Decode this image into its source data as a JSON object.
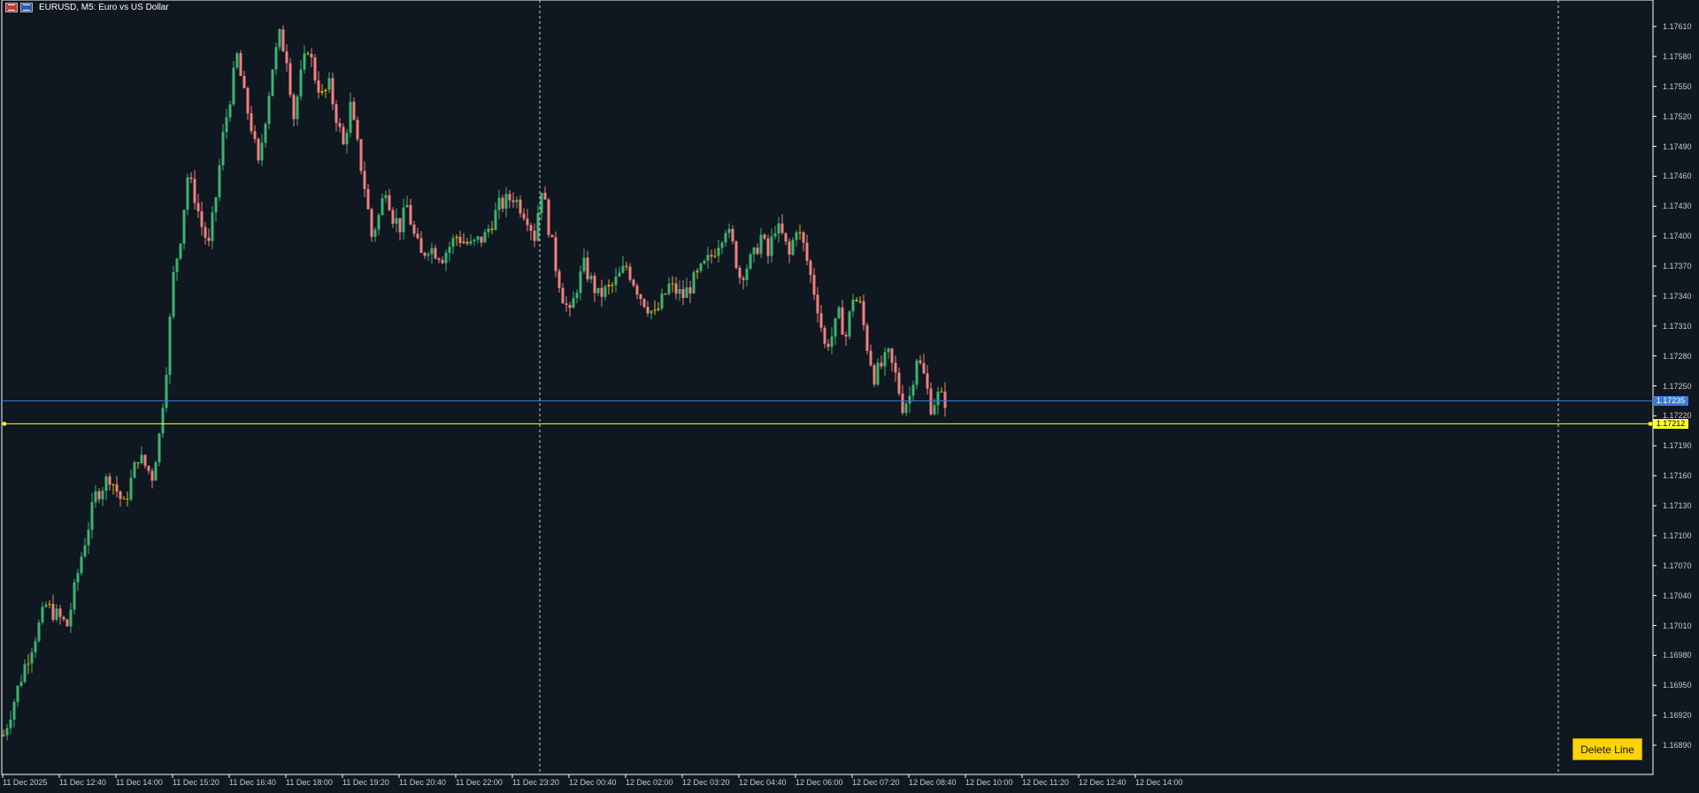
{
  "window": {
    "title": "EURUSD, M5:  Euro vs US Dollar",
    "icons": [
      "chart-menu-icon",
      "chart-window-icon"
    ]
  },
  "colors": {
    "background": "#0f1720",
    "axis": "#ffffff",
    "bull": "#3cb371",
    "bear": "#f08080",
    "doji": "#e6b800",
    "blue_line": "#3a7bd5",
    "yellow_line": "#ffff33",
    "button_bg": "#ffd400"
  },
  "price_axis": {
    "ticks": [
      "1.17610",
      "1.17580",
      "1.17550",
      "1.17520",
      "1.17490",
      "1.17460",
      "1.17430",
      "1.17400",
      "1.17370",
      "1.17340",
      "1.17310",
      "1.17280",
      "1.17250",
      "1.17220",
      "1.17190",
      "1.17160",
      "1.17130",
      "1.17100",
      "1.17070",
      "1.17040",
      "1.17010",
      "1.16980",
      "1.16950",
      "1.16920",
      "1.16890"
    ]
  },
  "time_axis": {
    "ticks": [
      "11 Dec 2025",
      "11 Dec 12:40",
      "11 Dec 14:00",
      "11 Dec 15:20",
      "11 Dec 16:40",
      "11 Dec 18:00",
      "11 Dec 19:20",
      "11 Dec 20:40",
      "11 Dec 22:00",
      "11 Dec 23:20",
      "12 Dec 00:40",
      "12 Dec 02:00",
      "12 Dec 03:20",
      "12 Dec 04:40",
      "12 Dec 06:00",
      "12 Dec 07:20",
      "12 Dec 08:40",
      "12 Dec 10:00",
      "12 Dec 11:20",
      "12 Dec 12:40",
      "12 Dec 14:00"
    ]
  },
  "horizontal_lines": {
    "blue": {
      "price": 1.17235,
      "label": "1.17235"
    },
    "yellow": {
      "price": 1.17212,
      "label": "1.17212"
    }
  },
  "delete_button": {
    "label": "Delete Line"
  },
  "chart_data": {
    "type": "candlestick",
    "symbol": "EURUSD",
    "timeframe": "M5",
    "ylim": [
      1.1687,
      1.1763
    ],
    "trend_path": [
      [
        0,
        1.169
      ],
      [
        6,
        1.1697
      ],
      [
        12,
        1.1703
      ],
      [
        18,
        1.1701
      ],
      [
        22,
        1.1708
      ],
      [
        26,
        1.1714
      ],
      [
        30,
        1.1716
      ],
      [
        34,
        1.1713
      ],
      [
        38,
        1.1718
      ],
      [
        42,
        1.1716
      ],
      [
        44,
        1.172
      ],
      [
        46,
        1.1727
      ],
      [
        48,
        1.1736
      ],
      [
        50,
        1.174
      ],
      [
        52,
        1.1746
      ],
      [
        54,
        1.1744
      ],
      [
        56,
        1.1741
      ],
      [
        58,
        1.1739
      ],
      [
        60,
        1.1744
      ],
      [
        62,
        1.175
      ],
      [
        64,
        1.1754
      ],
      [
        66,
        1.1758
      ],
      [
        68,
        1.1754
      ],
      [
        70,
        1.1751
      ],
      [
        72,
        1.1747
      ],
      [
        74,
        1.1752
      ],
      [
        76,
        1.1757
      ],
      [
        78,
        1.176
      ],
      [
        80,
        1.1758
      ],
      [
        82,
        1.1752
      ],
      [
        84,
        1.1756
      ],
      [
        86,
        1.1759
      ],
      [
        88,
        1.1756
      ],
      [
        90,
        1.1754
      ],
      [
        92,
        1.1755
      ],
      [
        94,
        1.1752
      ],
      [
        96,
        1.1749
      ],
      [
        98,
        1.1753
      ],
      [
        100,
        1.1749
      ],
      [
        102,
        1.1745
      ],
      [
        104,
        1.174
      ],
      [
        106,
        1.1742
      ],
      [
        108,
        1.1745
      ],
      [
        110,
        1.1742
      ],
      [
        112,
        1.1741
      ],
      [
        114,
        1.1743
      ],
      [
        116,
        1.174
      ],
      [
        118,
        1.1738
      ],
      [
        120,
        1.1739
      ],
      [
        124,
        1.1738
      ],
      [
        128,
        1.174
      ],
      [
        132,
        1.1739
      ],
      [
        136,
        1.174
      ],
      [
        140,
        1.1743
      ],
      [
        144,
        1.1744
      ],
      [
        148,
        1.1742
      ],
      [
        150,
        1.174
      ],
      [
        152,
        1.1745
      ],
      [
        154,
        1.1741
      ],
      [
        156,
        1.1737
      ],
      [
        158,
        1.1734
      ],
      [
        160,
        1.1732
      ],
      [
        162,
        1.1735
      ],
      [
        164,
        1.1737
      ],
      [
        168,
        1.1734
      ],
      [
        172,
        1.1735
      ],
      [
        176,
        1.1737
      ],
      [
        180,
        1.1734
      ],
      [
        184,
        1.1732
      ],
      [
        188,
        1.1735
      ],
      [
        192,
        1.1734
      ],
      [
        196,
        1.1736
      ],
      [
        200,
        1.1738
      ],
      [
        204,
        1.1741
      ],
      [
        206,
        1.1739
      ],
      [
        208,
        1.1736
      ],
      [
        212,
        1.1738
      ],
      [
        214,
        1.174
      ],
      [
        216,
        1.1738
      ],
      [
        218,
        1.1741
      ],
      [
        220,
        1.174
      ],
      [
        222,
        1.1738
      ],
      [
        224,
        1.1741
      ],
      [
        226,
        1.1739
      ],
      [
        228,
        1.1736
      ],
      [
        230,
        1.1733
      ],
      [
        232,
        1.1729
      ],
      [
        234,
        1.173
      ],
      [
        236,
        1.1732
      ],
      [
        238,
        1.173
      ],
      [
        240,
        1.1734
      ],
      [
        242,
        1.1733
      ],
      [
        244,
        1.1729
      ],
      [
        246,
        1.1726
      ],
      [
        248,
        1.1727
      ],
      [
        250,
        1.1728
      ],
      [
        252,
        1.1726
      ],
      [
        254,
        1.1723
      ],
      [
        256,
        1.1724
      ],
      [
        258,
        1.1728
      ],
      [
        260,
        1.1726
      ],
      [
        262,
        1.1723
      ],
      [
        264,
        1.1724
      ],
      [
        266,
        1.17235
      ]
    ],
    "horizontal_lines": [
      1.17235,
      1.17212
    ]
  }
}
